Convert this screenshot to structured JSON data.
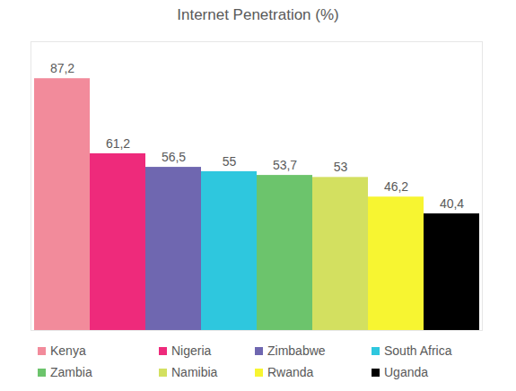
{
  "chart_data": {
    "type": "bar",
    "title": "Internet Penetration (%)",
    "categories": [
      "Kenya",
      "Nigeria",
      "Zimbabwe",
      "South Africa",
      "Zambia",
      "Namibia",
      "Rwanda",
      "Uganda"
    ],
    "values": [
      87.2,
      61.2,
      56.5,
      55,
      53.7,
      53,
      46.2,
      40.4
    ],
    "value_labels": [
      "87,2",
      "61,2",
      "56,5",
      "55",
      "53,7",
      "53",
      "46,2",
      "40,4"
    ],
    "colors": [
      "#f28b9b",
      "#ee2a7b",
      "#6f67b0",
      "#2ec7de",
      "#6cc46c",
      "#d3e060",
      "#f7f531",
      "#000000"
    ],
    "ylim": [
      0,
      100
    ],
    "data_labels": true,
    "tick_labels": false,
    "legend": "bottom"
  }
}
